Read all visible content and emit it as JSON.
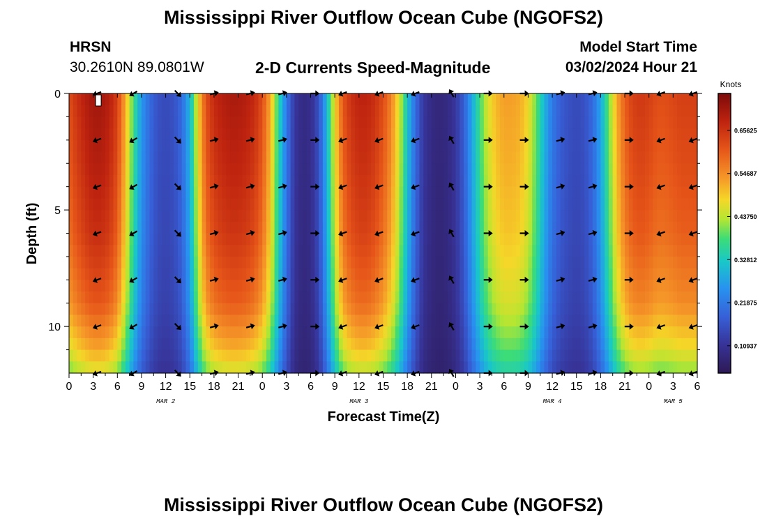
{
  "header": {
    "title": "Mississippi River Outflow Ocean Cube (NGOFS2)",
    "station": "HRSN",
    "coords": "30.2610N  89.0801W",
    "plot_title": "2-D Currents Speed-Magnitude",
    "model_start_label": "Model Start Time",
    "model_start_value": "03/02/2024 Hour 21"
  },
  "footer": {
    "title": "Mississippi River Outflow Ocean Cube (NGOFS2)"
  },
  "chart_data": {
    "type": "heatmap",
    "title": "2-D Currents Speed-Magnitude",
    "xlabel": "Forecast Time(Z)",
    "ylabel": "Depth (ft)",
    "xlim": [
      0,
      78
    ],
    "ylim": [
      0,
      12
    ],
    "x_ticks": [
      0,
      3,
      6,
      9,
      12,
      15,
      18,
      21,
      24,
      27,
      30,
      33,
      36,
      39,
      42,
      45,
      48,
      51,
      54,
      57,
      60,
      63,
      66,
      69,
      72,
      75,
      78
    ],
    "x_tick_labels": [
      "0",
      "3",
      "6",
      "9",
      "12",
      "15",
      "18",
      "21",
      "0",
      "3",
      "6",
      "9",
      "12",
      "15",
      "18",
      "21",
      "0",
      "3",
      "6",
      "9",
      "12",
      "15",
      "18",
      "21",
      "0",
      "3",
      "6"
    ],
    "y_ticks": [
      0,
      5,
      10
    ],
    "y_tick_labels": [
      "0",
      "5",
      "10"
    ],
    "date_labels": [
      {
        "x": 12,
        "label": "MAR 2"
      },
      {
        "x": 36,
        "label": "MAR 3"
      },
      {
        "x": 60,
        "label": "MAR 4"
      },
      {
        "x": 75,
        "label": "MAR 5"
      }
    ],
    "colorbar": {
      "label": "Knots",
      "range": [
        0.04,
        0.75
      ],
      "tick_values": [
        0.10937,
        0.21875,
        0.32812,
        0.4375,
        0.54687,
        0.65625
      ],
      "tick_labels": [
        "0.10937",
        "0.21875",
        "0.32812",
        "0.43750",
        "0.54687",
        "0.65625"
      ]
    },
    "speed_profile": {
      "hours": [
        0,
        1,
        2,
        3,
        4,
        5,
        6,
        7,
        8,
        9,
        10,
        11,
        12,
        13,
        14,
        15,
        16,
        17,
        18,
        19,
        20,
        21,
        22,
        23,
        24,
        25,
        26,
        27,
        28,
        29,
        30,
        31,
        32,
        33,
        34,
        35,
        36,
        37,
        38,
        39,
        40,
        41,
        42,
        43,
        44,
        45,
        46,
        47,
        48,
        49,
        50,
        51,
        52,
        53,
        54,
        55,
        56,
        57,
        58,
        59,
        60,
        61,
        62,
        63,
        64,
        65,
        66,
        67,
        68,
        69,
        70,
        71,
        72,
        73,
        74,
        75,
        76,
        77,
        78
      ],
      "surface_speed": [
        0.62,
        0.66,
        0.69,
        0.71,
        0.71,
        0.69,
        0.64,
        0.52,
        0.38,
        0.26,
        0.2,
        0.16,
        0.15,
        0.16,
        0.2,
        0.3,
        0.48,
        0.62,
        0.67,
        0.69,
        0.7,
        0.7,
        0.69,
        0.67,
        0.62,
        0.52,
        0.36,
        0.22,
        0.12,
        0.09,
        0.1,
        0.16,
        0.3,
        0.48,
        0.61,
        0.66,
        0.68,
        0.68,
        0.66,
        0.62,
        0.56,
        0.46,
        0.32,
        0.2,
        0.12,
        0.09,
        0.08,
        0.09,
        0.12,
        0.18,
        0.28,
        0.38,
        0.46,
        0.51,
        0.53,
        0.53,
        0.52,
        0.48,
        0.4,
        0.3,
        0.22,
        0.18,
        0.16,
        0.15,
        0.16,
        0.2,
        0.28,
        0.4,
        0.52,
        0.6,
        0.64,
        0.65,
        0.64,
        0.62,
        0.62,
        0.63,
        0.64,
        0.64,
        0.64
      ],
      "depth_scale": [
        [
          0,
          1.0
        ],
        [
          3,
          0.97
        ],
        [
          6,
          0.93
        ],
        [
          9,
          0.85
        ],
        [
          11,
          0.72
        ],
        [
          12,
          0.62
        ]
      ]
    },
    "arrow_depths": [
      0,
      2,
      4,
      6,
      8,
      10,
      12
    ],
    "arrows": [
      {
        "x": 3.5,
        "angle": 200
      },
      {
        "x": 8,
        "angle": 210
      },
      {
        "x": 13.5,
        "angle": 315
      },
      {
        "x": 18,
        "angle": 15
      },
      {
        "x": 22.5,
        "angle": 15
      },
      {
        "x": 26.5,
        "angle": 15
      },
      {
        "x": 30.5,
        "angle": 0
      },
      {
        "x": 34,
        "angle": 200
      },
      {
        "x": 38.5,
        "angle": 200
      },
      {
        "x": 43,
        "angle": 200
      },
      {
        "x": 47.5,
        "angle": 120
      },
      {
        "x": 52,
        "angle": 0
      },
      {
        "x": 56.5,
        "angle": 0
      },
      {
        "x": 61,
        "angle": 15
      },
      {
        "x": 65,
        "angle": 15
      },
      {
        "x": 69.5,
        "angle": 0
      },
      {
        "x": 73.5,
        "angle": 200
      },
      {
        "x": 77.5,
        "angle": 200
      }
    ]
  }
}
